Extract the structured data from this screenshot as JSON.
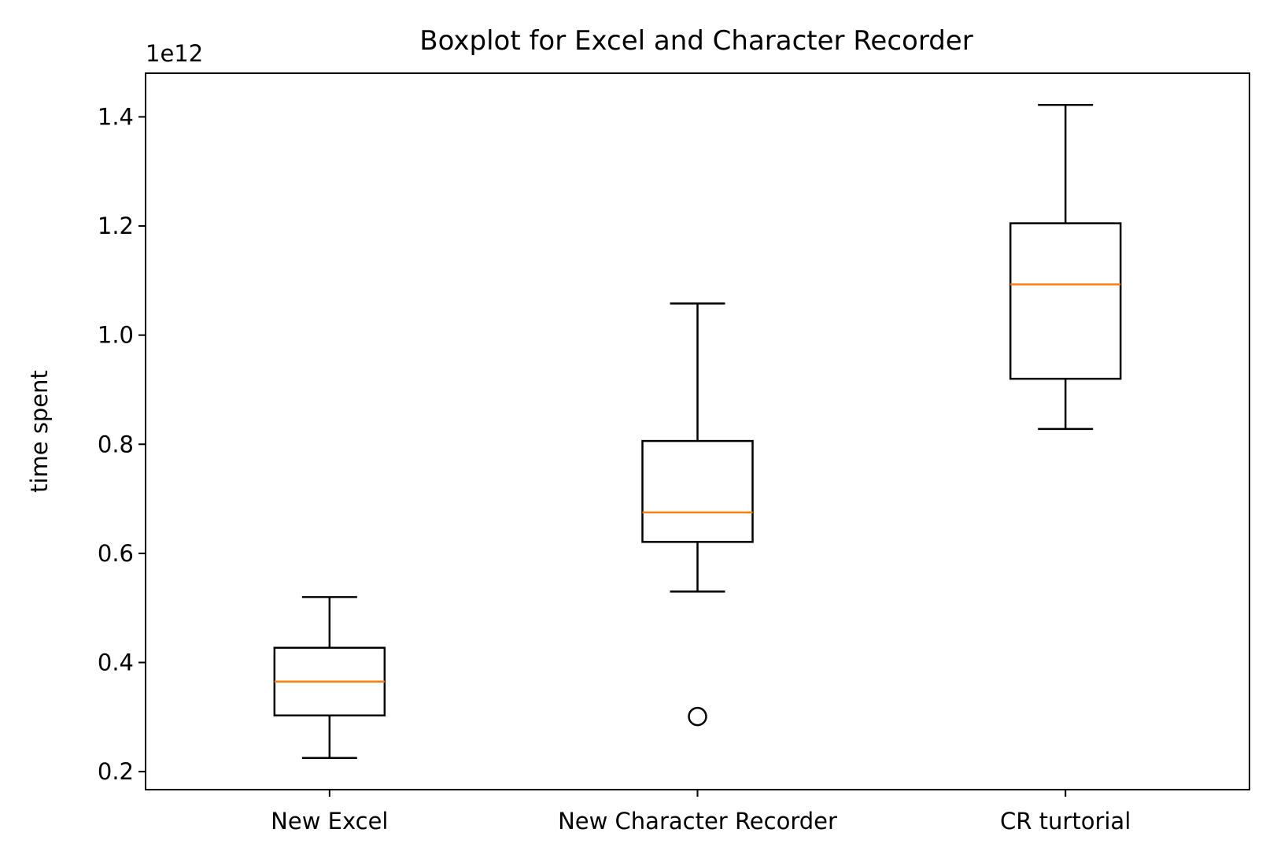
{
  "chart_data": {
    "type": "boxplot",
    "title": "Boxplot for Excel and Character Recorder",
    "xlabel": "",
    "ylabel": "time spent",
    "y_offset_label": "1e12",
    "y_scale_factor": 1000000000000,
    "ylim": [
      0.167,
      1.48
    ],
    "yticks": [
      0.2,
      0.4,
      0.6,
      0.8,
      1.0,
      1.2,
      1.4
    ],
    "ytick_labels": [
      "0.2",
      "0.4",
      "0.6",
      "0.8",
      "1.0",
      "1.2",
      "1.4"
    ],
    "categories": [
      "New Excel",
      "New Character Recorder",
      "CR turtorial"
    ],
    "boxes": [
      {
        "category": "New Excel",
        "whisker_low": 0.225,
        "q1": 0.303,
        "median": 0.365,
        "q3": 0.427,
        "whisker_high": 0.52,
        "outliers": []
      },
      {
        "category": "New Character Recorder",
        "whisker_low": 0.53,
        "q1": 0.621,
        "median": 0.675,
        "q3": 0.806,
        "whisker_high": 1.058,
        "outliers": [
          0.301
        ]
      },
      {
        "category": "CR turtorial",
        "whisker_low": 0.828,
        "q1": 0.92,
        "median": 1.093,
        "q3": 1.205,
        "whisker_high": 1.422,
        "outliers": []
      }
    ],
    "grid": false,
    "colors": {
      "box": "#000000",
      "median": "#ff7f0e"
    }
  }
}
